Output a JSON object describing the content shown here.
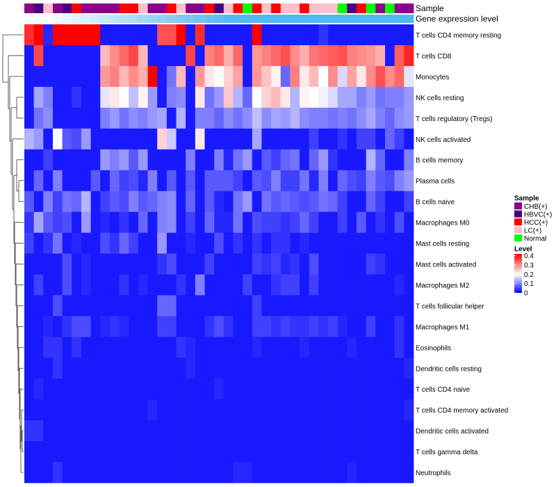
{
  "chart_data": {
    "type": "heatmap",
    "title": "",
    "annotation_track_labels": [
      "Sample",
      "Gene expression level"
    ],
    "rows": [
      "T cells CD4 memory resting",
      "T cells CD8",
      "Monocytes",
      "NK cells resting",
      "T cells regulatory (Tregs)",
      "NK cells activated",
      "B cells memory",
      "Plasma cells",
      "B cells naive",
      "Macrophages M0",
      "Mast cells resting",
      "Mast cells activated",
      "Macrophages M2",
      "T cells follicular helper",
      "Macrophages M1",
      "Eosinophils",
      "Dendritic cells resting",
      "T cells CD4 naive",
      "T cells CD4 memory activated",
      "Dendritic cells activated",
      "T cells gamma delta",
      "Neutrophils"
    ],
    "n_columns": 41,
    "sample_groups": [
      "CHB(+)",
      "HBVC(+)",
      "LC(+)",
      "CHB(+)",
      "HBVC(+)",
      "HCC(+)",
      "CHB(+)",
      "CHB(+)",
      "CHB(+)",
      "CHB(+)",
      "HCC(+)",
      "HCC(+)",
      "LC(+)",
      "CHB(+)",
      "CHB(+)",
      "HCC(+)",
      "LC(+)",
      "CHB(+)",
      "CHB(+)",
      "HCC(+)",
      "HBVC(+)",
      "LC(+)",
      "HCC(+)",
      "Normal",
      "HCC(+)",
      "LC(+)",
      "HCC(+)",
      "LC(+)",
      "LC(+)",
      "HCC(+)",
      "LC(+)",
      "LC(+)",
      "LC(+)",
      "Normal",
      "HBVC(+)",
      "HCC(+)",
      "Normal",
      "CHB(+)",
      "Normal",
      "CHB(+)",
      "CHB(+)"
    ],
    "expression_track_values": [
      0.02,
      0.02,
      0.02,
      0.03,
      0.05,
      0.07,
      0.09,
      0.11,
      0.13,
      0.15,
      0.17,
      0.19,
      0.21,
      0.23,
      0.25,
      0.27,
      0.29,
      0.31,
      0.33,
      0.35,
      0.37,
      0.39,
      0.4,
      0.4,
      0.4,
      0.4,
      0.4,
      0.4,
      0.4,
      0.4,
      0.4,
      0.4,
      0.4,
      0.4,
      0.4,
      0.4,
      0.4,
      0.4,
      0.4,
      0.4,
      0.4
    ],
    "values": [
      [
        0.38,
        0.42,
        0.03,
        0.42,
        0.42,
        0.42,
        0.42,
        0.42,
        0.02,
        0.02,
        0.02,
        0.02,
        0.02,
        0.02,
        0.35,
        0.35,
        0.42,
        0.02,
        0.38,
        0.02,
        0.02,
        0.02,
        0.02,
        0.02,
        0.42,
        0.02,
        0.02,
        0.02,
        0.02,
        0.02,
        0.02,
        0.04,
        0.02,
        0.02,
        0.02,
        0.02,
        0.02,
        0.02,
        0.02,
        0.02,
        0.02
      ],
      [
        0.02,
        0.36,
        0.02,
        0.02,
        0.02,
        0.02,
        0.02,
        0.02,
        0.26,
        0.3,
        0.33,
        0.36,
        0.26,
        0.02,
        0.02,
        0.02,
        0.02,
        0.36,
        0.02,
        0.31,
        0.33,
        0.27,
        0.33,
        0.02,
        0.29,
        0.31,
        0.33,
        0.35,
        0.3,
        0.27,
        0.32,
        0.33,
        0.34,
        0.35,
        0.31,
        0.3,
        0.29,
        0.27,
        0.02,
        0.34,
        0.39
      ],
      [
        0.02,
        0.02,
        0.02,
        0.02,
        0.02,
        0.02,
        0.02,
        0.02,
        0.29,
        0.31,
        0.26,
        0.3,
        0.27,
        0.42,
        0.02,
        0.09,
        0.26,
        0.02,
        0.29,
        0.22,
        0.2,
        0.24,
        0.28,
        0.02,
        0.29,
        0.25,
        0.21,
        0.08,
        0.31,
        0.22,
        0.26,
        0.2,
        0.3,
        0.17,
        0.28,
        0.22,
        0.3,
        0.35,
        0.3,
        0.33,
        0.18
      ],
      [
        0.02,
        0.13,
        0.1,
        0.02,
        0.02,
        0.04,
        0.02,
        0.02,
        0.18,
        0.22,
        0.2,
        0.15,
        0.21,
        0.12,
        0.02,
        0.1,
        0.11,
        0.02,
        0.22,
        0.09,
        0.12,
        0.25,
        0.14,
        0.08,
        0.2,
        0.24,
        0.26,
        0.22,
        0.14,
        0.21,
        0.2,
        0.19,
        0.17,
        0.13,
        0.13,
        0.1,
        0.12,
        0.09,
        0.1,
        0.1,
        0.12
      ],
      [
        0.02,
        0.09,
        0.11,
        0.02,
        0.02,
        0.02,
        0.02,
        0.02,
        0.1,
        0.12,
        0.09,
        0.11,
        0.1,
        0.12,
        0.13,
        0.02,
        0.14,
        0.02,
        0.1,
        0.1,
        0.08,
        0.11,
        0.09,
        0.11,
        0.15,
        0.11,
        0.13,
        0.12,
        0.14,
        0.11,
        0.1,
        0.1,
        0.09,
        0.1,
        0.09,
        0.11,
        0.13,
        0.1,
        0.08,
        0.11,
        0.12
      ],
      [
        0.14,
        0.12,
        0.02,
        0.2,
        0.07,
        0.06,
        0.12,
        0.02,
        0.02,
        0.02,
        0.02,
        0.02,
        0.02,
        0.02,
        0.24,
        0.16,
        0.02,
        0.02,
        0.22,
        0.02,
        0.02,
        0.02,
        0.02,
        0.02,
        0.13,
        0.02,
        0.02,
        0.02,
        0.02,
        0.02,
        0.05,
        0.02,
        0.02,
        0.04,
        0.02,
        0.05,
        0.05,
        0.02,
        0.08,
        0.05,
        0.02
      ],
      [
        0.02,
        0.02,
        0.05,
        0.02,
        0.02,
        0.02,
        0.02,
        0.02,
        0.12,
        0.1,
        0.12,
        0.07,
        0.12,
        0.02,
        0.02,
        0.02,
        0.02,
        0.1,
        0.02,
        0.02,
        0.1,
        0.03,
        0.09,
        0.12,
        0.02,
        0.07,
        0.05,
        0.08,
        0.09,
        0.02,
        0.08,
        0.12,
        0.04,
        0.02,
        0.02,
        0.02,
        0.14,
        0.08,
        0.02,
        0.02,
        0.1
      ],
      [
        0.02,
        0.08,
        0.02,
        0.1,
        0.02,
        0.02,
        0.02,
        0.07,
        0.02,
        0.08,
        0.05,
        0.06,
        0.03,
        0.1,
        0.02,
        0.07,
        0.02,
        0.07,
        0.02,
        0.07,
        0.07,
        0.07,
        0.05,
        0.02,
        0.07,
        0.06,
        0.1,
        0.05,
        0.05,
        0.09,
        0.03,
        0.1,
        0.02,
        0.08,
        0.06,
        0.05,
        0.1,
        0.07,
        0.06,
        0.1,
        0.12
      ],
      [
        0.07,
        0.02,
        0.1,
        0.05,
        0.09,
        0.08,
        0.14,
        0.02,
        0.05,
        0.07,
        0.06,
        0.1,
        0.07,
        0.08,
        0.1,
        0.11,
        0.02,
        0.08,
        0.02,
        0.07,
        0.03,
        0.02,
        0.09,
        0.12,
        0.02,
        0.09,
        0.07,
        0.08,
        0.07,
        0.06,
        0.07,
        0.09,
        0.08,
        0.05,
        0.02,
        0.02,
        0.08,
        0.05,
        0.02,
        0.02,
        0.05
      ],
      [
        0.04,
        0.13,
        0.07,
        0.05,
        0.06,
        0.02,
        0.12,
        0.02,
        0.03,
        0.02,
        0.04,
        0.02,
        0.08,
        0.02,
        0.1,
        0.11,
        0.02,
        0.05,
        0.02,
        0.08,
        0.03,
        0.03,
        0.09,
        0.02,
        0.06,
        0.05,
        0.05,
        0.04,
        0.05,
        0.08,
        0.05,
        0.02,
        0.02,
        0.05,
        0.02,
        0.07,
        0.02,
        0.04,
        0.02,
        0.06,
        0.02
      ],
      [
        0.05,
        0.02,
        0.04,
        0.09,
        0.02,
        0.03,
        0.02,
        0.02,
        0.06,
        0.04,
        0.08,
        0.05,
        0.02,
        0.02,
        0.12,
        0.02,
        0.02,
        0.03,
        0.02,
        0.02,
        0.06,
        0.02,
        0.04,
        0.02,
        0.04,
        0.02,
        0.04,
        0.04,
        0.02,
        0.03,
        0.02,
        0.02,
        0.02,
        0.02,
        0.02,
        0.02,
        0.02,
        0.02,
        0.02,
        0.02,
        0.02
      ],
      [
        0.02,
        0.02,
        0.02,
        0.02,
        0.06,
        0.02,
        0.03,
        0.02,
        0.02,
        0.02,
        0.02,
        0.02,
        0.02,
        0.02,
        0.04,
        0.06,
        0.02,
        0.02,
        0.02,
        0.05,
        0.02,
        0.02,
        0.02,
        0.02,
        0.05,
        0.04,
        0.05,
        0.03,
        0.04,
        0.02,
        0.06,
        0.02,
        0.02,
        0.02,
        0.02,
        0.02,
        0.05,
        0.04,
        0.02,
        0.02,
        0.02
      ],
      [
        0.02,
        0.05,
        0.02,
        0.02,
        0.06,
        0.02,
        0.03,
        0.02,
        0.02,
        0.02,
        0.04,
        0.02,
        0.03,
        0.02,
        0.02,
        0.02,
        0.04,
        0.02,
        0.1,
        0.02,
        0.02,
        0.02,
        0.02,
        0.05,
        0.02,
        0.02,
        0.04,
        0.05,
        0.05,
        0.02,
        0.05,
        0.02,
        0.02,
        0.02,
        0.02,
        0.02,
        0.02,
        0.02,
        0.02,
        0.03,
        0.02
      ],
      [
        0.02,
        0.02,
        0.02,
        0.06,
        0.02,
        0.02,
        0.02,
        0.02,
        0.02,
        0.02,
        0.02,
        0.02,
        0.02,
        0.02,
        0.08,
        0.08,
        0.02,
        0.02,
        0.02,
        0.02,
        0.02,
        0.02,
        0.02,
        0.02,
        0.05,
        0.02,
        0.02,
        0.02,
        0.02,
        0.02,
        0.02,
        0.02,
        0.02,
        0.02,
        0.02,
        0.02,
        0.02,
        0.02,
        0.02,
        0.02,
        0.02
      ],
      [
        0.02,
        0.02,
        0.03,
        0.02,
        0.04,
        0.06,
        0.06,
        0.02,
        0.03,
        0.04,
        0.03,
        0.02,
        0.02,
        0.02,
        0.05,
        0.05,
        0.02,
        0.02,
        0.02,
        0.04,
        0.06,
        0.04,
        0.02,
        0.02,
        0.05,
        0.05,
        0.04,
        0.05,
        0.04,
        0.04,
        0.05,
        0.04,
        0.05,
        0.03,
        0.02,
        0.02,
        0.05,
        0.02,
        0.02,
        0.04,
        0.02
      ],
      [
        0.02,
        0.02,
        0.04,
        0.04,
        0.02,
        0.04,
        0.02,
        0.02,
        0.02,
        0.02,
        0.02,
        0.02,
        0.02,
        0.02,
        0.02,
        0.02,
        0.04,
        0.03,
        0.02,
        0.02,
        0.02,
        0.02,
        0.02,
        0.02,
        0.03,
        0.02,
        0.02,
        0.02,
        0.02,
        0.03,
        0.02,
        0.02,
        0.02,
        0.02,
        0.03,
        0.02,
        0.02,
        0.02,
        0.02,
        0.04,
        0.02
      ],
      [
        0.02,
        0.02,
        0.02,
        0.04,
        0.02,
        0.02,
        0.02,
        0.02,
        0.02,
        0.02,
        0.02,
        0.02,
        0.02,
        0.02,
        0.02,
        0.02,
        0.02,
        0.03,
        0.02,
        0.02,
        0.02,
        0.02,
        0.02,
        0.02,
        0.02,
        0.02,
        0.02,
        0.02,
        0.02,
        0.02,
        0.02,
        0.02,
        0.02,
        0.02,
        0.02,
        0.02,
        0.02,
        0.02,
        0.02,
        0.02,
        0.03
      ],
      [
        0.02,
        0.03,
        0.02,
        0.02,
        0.02,
        0.02,
        0.02,
        0.02,
        0.02,
        0.02,
        0.02,
        0.02,
        0.02,
        0.02,
        0.02,
        0.02,
        0.02,
        0.02,
        0.02,
        0.02,
        0.03,
        0.02,
        0.02,
        0.02,
        0.02,
        0.02,
        0.02,
        0.02,
        0.02,
        0.02,
        0.02,
        0.02,
        0.02,
        0.02,
        0.02,
        0.02,
        0.02,
        0.02,
        0.02,
        0.02,
        0.02
      ],
      [
        0.02,
        0.02,
        0.02,
        0.02,
        0.02,
        0.02,
        0.02,
        0.02,
        0.02,
        0.02,
        0.02,
        0.02,
        0.02,
        0.03,
        0.02,
        0.02,
        0.02,
        0.02,
        0.02,
        0.02,
        0.02,
        0.02,
        0.02,
        0.02,
        0.02,
        0.02,
        0.02,
        0.02,
        0.02,
        0.02,
        0.02,
        0.02,
        0.02,
        0.02,
        0.02,
        0.02,
        0.02,
        0.02,
        0.02,
        0.02,
        0.03
      ],
      [
        0.04,
        0.04,
        0.02,
        0.02,
        0.02,
        0.02,
        0.02,
        0.02,
        0.02,
        0.02,
        0.02,
        0.02,
        0.02,
        0.02,
        0.02,
        0.02,
        0.02,
        0.02,
        0.02,
        0.02,
        0.02,
        0.02,
        0.02,
        0.02,
        0.02,
        0.02,
        0.02,
        0.02,
        0.02,
        0.02,
        0.02,
        0.02,
        0.02,
        0.02,
        0.02,
        0.02,
        0.02,
        0.02,
        0.02,
        0.02,
        0.02
      ],
      [
        0.02,
        0.02,
        0.02,
        0.02,
        0.02,
        0.02,
        0.02,
        0.02,
        0.02,
        0.02,
        0.02,
        0.02,
        0.02,
        0.02,
        0.02,
        0.02,
        0.02,
        0.02,
        0.02,
        0.02,
        0.02,
        0.02,
        0.02,
        0.02,
        0.02,
        0.02,
        0.02,
        0.02,
        0.02,
        0.02,
        0.02,
        0.02,
        0.02,
        0.02,
        0.02,
        0.02,
        0.02,
        0.02,
        0.02,
        0.02,
        0.02
      ],
      [
        0.02,
        0.02,
        0.02,
        0.04,
        0.02,
        0.02,
        0.02,
        0.02,
        0.02,
        0.02,
        0.02,
        0.02,
        0.02,
        0.02,
        0.02,
        0.02,
        0.02,
        0.02,
        0.02,
        0.02,
        0.02,
        0.02,
        0.03,
        0.03,
        0.02,
        0.02,
        0.02,
        0.02,
        0.02,
        0.02,
        0.02,
        0.02,
        0.02,
        0.02,
        0.03,
        0.02,
        0.02,
        0.02,
        0.02,
        0.02,
        0.02
      ]
    ],
    "color_scale": {
      "min": 0,
      "max": 0.42,
      "low_color": "#0000ff",
      "mid_color": "#ffffff",
      "high_color": "#ff0000",
      "mid_value": 0.2
    },
    "legends": {
      "sample": {
        "title": "Sample",
        "items": [
          {
            "label": "CHB(+)",
            "color": "#8b008b"
          },
          {
            "label": "HBVC(+)",
            "color": "#4b0082"
          },
          {
            "label": "HCC(+)",
            "color": "#ff0000"
          },
          {
            "label": "LC(+)",
            "color": "#ffc0cb"
          },
          {
            "label": "Normal",
            "color": "#00ff00"
          }
        ]
      },
      "level": {
        "title": "Level",
        "ticks": [
          0.4,
          0.3,
          0.2,
          0.1,
          0
        ]
      }
    }
  }
}
